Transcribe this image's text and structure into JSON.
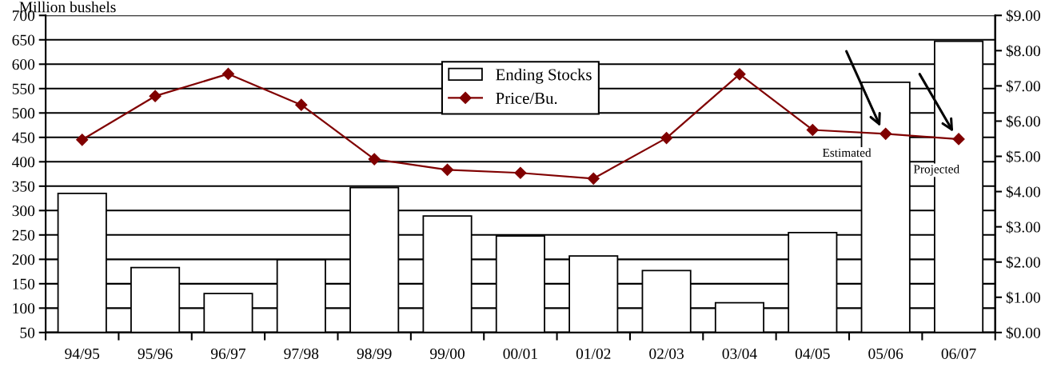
{
  "chart_data": {
    "type": "bar",
    "ylabel": "Million bushels",
    "categories": [
      "94/95",
      "95/96",
      "96/97",
      "97/98",
      "98/99",
      "99/00",
      "00/01",
      "01/02",
      "02/03",
      "03/04",
      "04/05",
      "05/06",
      "06/07"
    ],
    "series": [
      {
        "name": "Ending Stocks",
        "color": "#ffffff",
        "values": [
          335,
          183,
          130,
          199,
          347,
          289,
          248,
          207,
          177,
          111,
          255,
          563,
          647
        ]
      },
      {
        "name": "Price/Bu.",
        "type": "line",
        "axis": "y2",
        "color": "#800000",
        "marker": "diamond",
        "values": [
          5.47,
          6.71,
          7.34,
          6.46,
          4.92,
          4.62,
          4.53,
          4.37,
          5.52,
          7.33,
          5.75,
          5.64,
          5.49
        ]
      }
    ],
    "ylim": [
      50,
      700
    ],
    "yticks": [
      50,
      100,
      150,
      200,
      250,
      300,
      350,
      400,
      450,
      500,
      550,
      600,
      650,
      700
    ],
    "y2lim": [
      0,
      9
    ],
    "y2ticks": [
      {
        "value": 0,
        "label": "$0.00"
      },
      {
        "value": 1,
        "label": "$1.00"
      },
      {
        "value": 2,
        "label": "$2.00"
      },
      {
        "value": 3,
        "label": "$3.00"
      },
      {
        "value": 4,
        "label": "$4.00"
      },
      {
        "value": 5,
        "label": "$5.00"
      },
      {
        "value": 6,
        "label": "$6.00"
      },
      {
        "value": 7,
        "label": "$7.00"
      },
      {
        "value": 8,
        "label": "$8.00"
      },
      {
        "value": 9,
        "label": "$9.00"
      }
    ],
    "annotations": [
      "Estimated",
      "Projected"
    ],
    "grid": "y",
    "legend": "top"
  }
}
